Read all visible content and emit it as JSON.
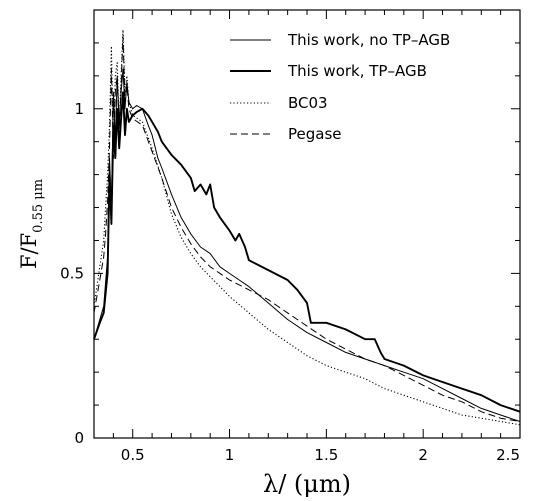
{
  "chart_data": {
    "type": "line",
    "xlabel": "λ/ (μm)",
    "ylabel": "F/F",
    "ylabel_sub": "0.55 μm",
    "xlim": [
      0.3,
      2.5
    ],
    "ylim": [
      0,
      1.3
    ],
    "xticks": [
      {
        "value": 0.5,
        "label": "0.5"
      },
      {
        "value": 1,
        "label": "1"
      },
      {
        "value": 1.5,
        "label": "1.5"
      },
      {
        "value": 2,
        "label": "2"
      },
      {
        "value": 2.5,
        "label": "2.5"
      }
    ],
    "yticks": [
      {
        "value": 0,
        "label": "0"
      },
      {
        "value": 0.5,
        "label": "0.5"
      },
      {
        "value": 1,
        "label": "1"
      }
    ],
    "grid": false,
    "legend_position": "top-right",
    "series": [
      {
        "name": "This work, no TP–AGB",
        "style": "thin",
        "x": [
          0.3,
          0.33,
          0.35,
          0.37,
          0.38,
          0.39,
          0.4,
          0.41,
          0.42,
          0.43,
          0.44,
          0.45,
          0.46,
          0.47,
          0.48,
          0.5,
          0.52,
          0.55,
          0.58,
          0.6,
          0.63,
          0.65,
          0.7,
          0.75,
          0.8,
          0.85,
          0.9,
          0.95,
          1.0,
          1.05,
          1.1,
          1.2,
          1.3,
          1.4,
          1.5,
          1.6,
          1.7,
          1.8,
          1.9,
          2.0,
          2.1,
          2.2,
          2.3,
          2.4,
          2.5
        ],
        "y": [
          0.3,
          0.36,
          0.4,
          0.55,
          0.85,
          0.7,
          1.05,
          0.9,
          1.1,
          0.95,
          1.05,
          1.12,
          1.0,
          1.08,
          1.02,
          1.0,
          1.01,
          1.0,
          0.95,
          0.92,
          0.85,
          0.82,
          0.74,
          0.67,
          0.62,
          0.58,
          0.56,
          0.52,
          0.5,
          0.48,
          0.46,
          0.41,
          0.36,
          0.32,
          0.29,
          0.26,
          0.24,
          0.22,
          0.2,
          0.18,
          0.15,
          0.12,
          0.09,
          0.07,
          0.05
        ]
      },
      {
        "name": "This work, TP–AGB",
        "style": "thick",
        "x": [
          0.3,
          0.33,
          0.35,
          0.37,
          0.38,
          0.39,
          0.4,
          0.41,
          0.42,
          0.43,
          0.44,
          0.45,
          0.46,
          0.47,
          0.48,
          0.5,
          0.52,
          0.55,
          0.58,
          0.6,
          0.63,
          0.65,
          0.7,
          0.75,
          0.8,
          0.82,
          0.85,
          0.88,
          0.9,
          0.92,
          0.95,
          1.0,
          1.03,
          1.05,
          1.08,
          1.1,
          1.2,
          1.3,
          1.35,
          1.4,
          1.42,
          1.5,
          1.6,
          1.7,
          1.75,
          1.78,
          1.8,
          1.9,
          2.0,
          2.1,
          2.2,
          2.3,
          2.4,
          2.5
        ],
        "y": [
          0.3,
          0.35,
          0.38,
          0.5,
          0.8,
          0.65,
          0.95,
          0.85,
          1.0,
          0.88,
          0.97,
          1.05,
          0.92,
          1.0,
          0.96,
          0.98,
          0.99,
          1.0,
          0.98,
          0.96,
          0.93,
          0.9,
          0.86,
          0.83,
          0.79,
          0.75,
          0.77,
          0.74,
          0.77,
          0.7,
          0.67,
          0.63,
          0.6,
          0.62,
          0.58,
          0.54,
          0.51,
          0.48,
          0.45,
          0.41,
          0.35,
          0.35,
          0.33,
          0.3,
          0.3,
          0.26,
          0.24,
          0.22,
          0.19,
          0.17,
          0.15,
          0.13,
          0.1,
          0.08
        ]
      },
      {
        "name": "BC03",
        "style": "dotted",
        "x": [
          0.3,
          0.33,
          0.35,
          0.36,
          0.37,
          0.38,
          0.39,
          0.4,
          0.41,
          0.42,
          0.43,
          0.44,
          0.45,
          0.46,
          0.47,
          0.48,
          0.5,
          0.55,
          0.6,
          0.65,
          0.7,
          0.75,
          0.8,
          0.85,
          0.9,
          0.95,
          1.0,
          1.1,
          1.2,
          1.3,
          1.4,
          1.5,
          1.6,
          1.7,
          1.8,
          1.9,
          2.0,
          2.1,
          2.2,
          2.3,
          2.4,
          2.5
        ],
        "y": [
          0.4,
          0.52,
          0.6,
          0.7,
          0.8,
          0.95,
          1.19,
          0.88,
          1.1,
          1.14,
          0.95,
          1.1,
          1.24,
          1.05,
          1.1,
          1.02,
          0.98,
          0.96,
          0.88,
          0.79,
          0.68,
          0.61,
          0.56,
          0.52,
          0.49,
          0.46,
          0.43,
          0.38,
          0.33,
          0.29,
          0.25,
          0.22,
          0.2,
          0.18,
          0.15,
          0.13,
          0.11,
          0.09,
          0.07,
          0.06,
          0.05,
          0.04
        ]
      },
      {
        "name": "Pegase",
        "style": "dashed",
        "x": [
          0.3,
          0.33,
          0.35,
          0.36,
          0.37,
          0.38,
          0.39,
          0.4,
          0.41,
          0.42,
          0.43,
          0.44,
          0.45,
          0.46,
          0.47,
          0.48,
          0.5,
          0.55,
          0.6,
          0.65,
          0.7,
          0.75,
          0.8,
          0.85,
          0.9,
          0.95,
          1.0,
          1.1,
          1.2,
          1.3,
          1.4,
          1.5,
          1.6,
          1.7,
          1.8,
          1.9,
          2.0,
          2.1,
          2.2,
          2.3,
          2.4,
          2.5
        ],
        "y": [
          0.38,
          0.48,
          0.55,
          0.62,
          0.72,
          0.88,
          1.12,
          0.85,
          1.05,
          1.1,
          0.92,
          1.07,
          1.22,
          1.02,
          1.07,
          1.0,
          0.97,
          0.95,
          0.87,
          0.79,
          0.7,
          0.64,
          0.59,
          0.55,
          0.52,
          0.5,
          0.48,
          0.45,
          0.42,
          0.38,
          0.34,
          0.3,
          0.27,
          0.24,
          0.22,
          0.19,
          0.16,
          0.13,
          0.11,
          0.08,
          0.06,
          0.05
        ]
      }
    ]
  }
}
